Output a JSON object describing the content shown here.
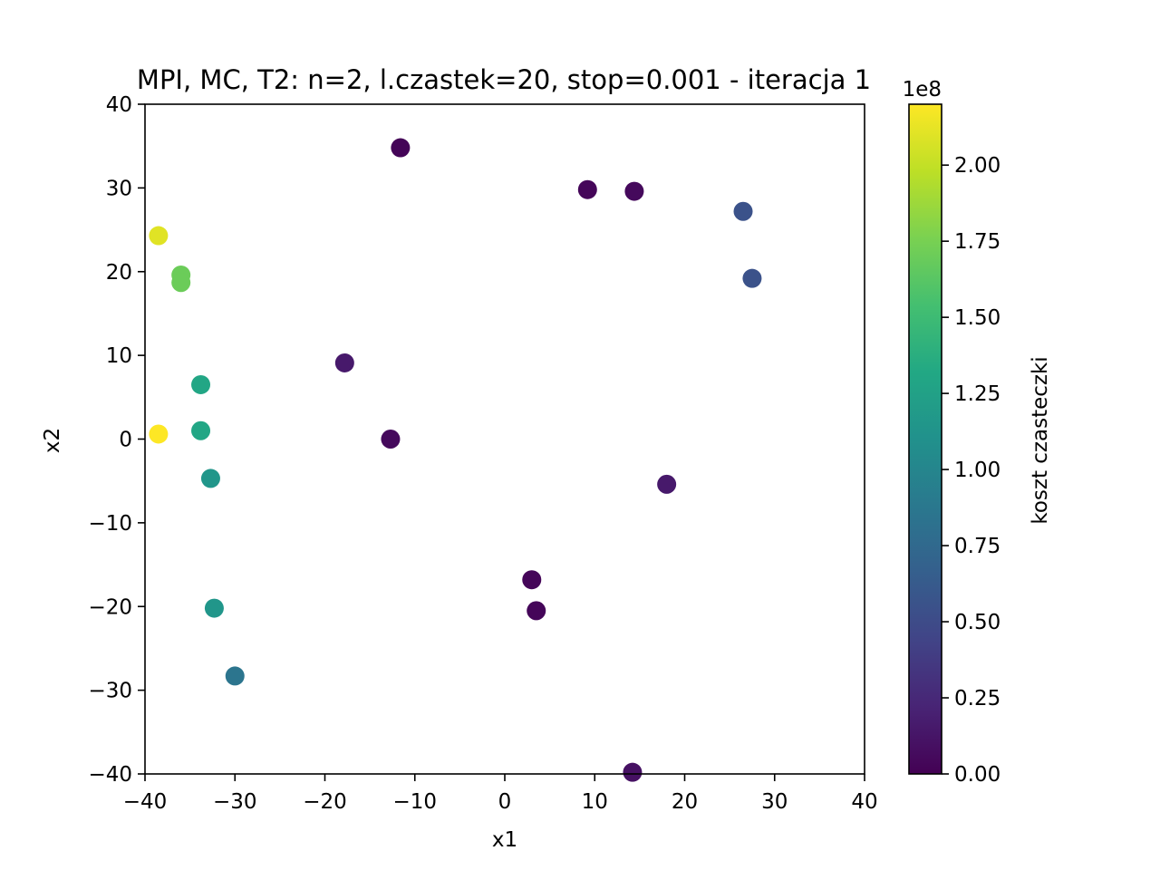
{
  "chart_data": {
    "type": "scatter",
    "title": "MPI, MC, T2: n=2, l.czastek=20, stop=0.001 - iteracja 1",
    "xlabel": "x1",
    "ylabel": "x2",
    "xlim": [
      -40,
      40
    ],
    "ylim": [
      -40,
      40
    ],
    "xticks": [
      "−40",
      "−30",
      "−20",
      "−10",
      "0",
      "10",
      "20",
      "30",
      "40"
    ],
    "yticks": [
      "−40",
      "−30",
      "−20",
      "−10",
      "0",
      "10",
      "20",
      "30",
      "40"
    ],
    "xtick_values": [
      -40,
      -30,
      -20,
      -10,
      0,
      10,
      20,
      30,
      40
    ],
    "ytick_values": [
      -40,
      -30,
      -20,
      -10,
      0,
      10,
      20,
      30,
      40
    ],
    "grid": false,
    "colormap": "viridis",
    "colorbar": {
      "label": "koszt czasteczki",
      "offset_text": "1e8",
      "range": [
        0,
        2.2
      ],
      "tick_values": [
        0,
        0.25,
        0.5,
        0.75,
        1.0,
        1.25,
        1.5,
        1.75,
        2.0
      ],
      "tick_labels": [
        "0.00",
        "0.25",
        "0.50",
        "0.75",
        "1.00",
        "1.25",
        "1.50",
        "1.75",
        "2.00"
      ]
    },
    "points": [
      {
        "x": -11.6,
        "y": 34.8,
        "c": 0.02
      },
      {
        "x": 9.2,
        "y": 29.8,
        "c": 0.03
      },
      {
        "x": 14.4,
        "y": 29.6,
        "c": 0.05
      },
      {
        "x": 26.5,
        "y": 27.2,
        "c": 0.55
      },
      {
        "x": 27.5,
        "y": 19.2,
        "c": 0.55
      },
      {
        "x": -38.5,
        "y": 24.3,
        "c": 2.1
      },
      {
        "x": -36.0,
        "y": 19.6,
        "c": 1.7
      },
      {
        "x": -36.0,
        "y": 18.7,
        "c": 1.7
      },
      {
        "x": -17.8,
        "y": 9.1,
        "c": 0.15
      },
      {
        "x": -33.8,
        "y": 6.5,
        "c": 1.3
      },
      {
        "x": -38.5,
        "y": 0.6,
        "c": 2.2
      },
      {
        "x": -33.8,
        "y": 1.0,
        "c": 1.3
      },
      {
        "x": -12.7,
        "y": 0.0,
        "c": 0.05
      },
      {
        "x": 18.0,
        "y": -5.4,
        "c": 0.15
      },
      {
        "x": -32.7,
        "y": -4.7,
        "c": 1.15
      },
      {
        "x": 3.0,
        "y": -16.8,
        "c": 0.03
      },
      {
        "x": 3.5,
        "y": -20.5,
        "c": 0.03
      },
      {
        "x": -32.3,
        "y": -20.2,
        "c": 1.15
      },
      {
        "x": -30.0,
        "y": -28.3,
        "c": 0.85
      },
      {
        "x": 14.2,
        "y": -39.8,
        "c": 0.1
      }
    ]
  }
}
